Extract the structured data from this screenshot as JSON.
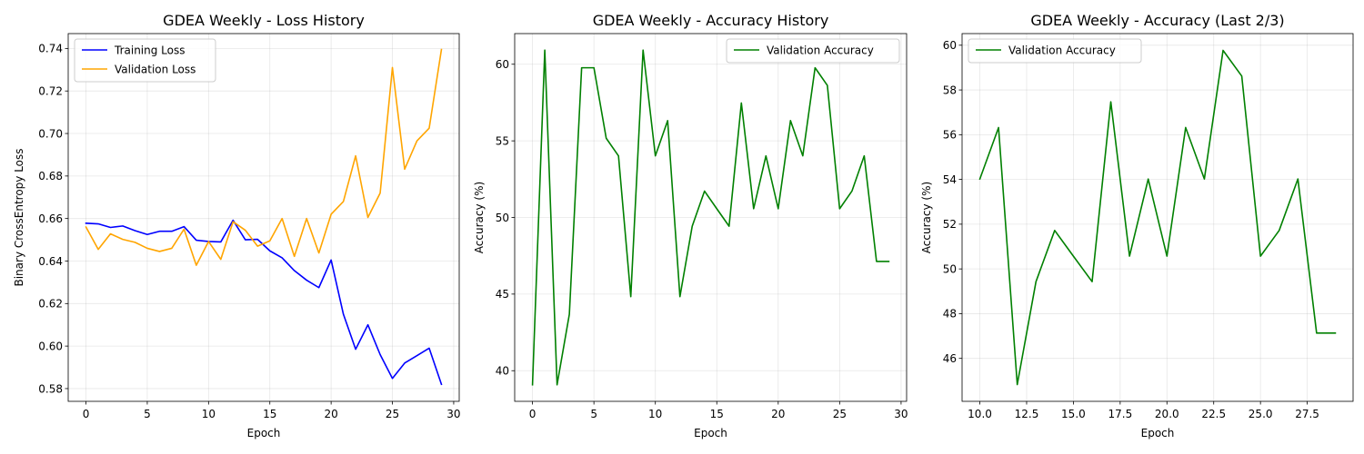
{
  "chart_data": [
    {
      "type": "line",
      "title": "GDEA Weekly - Loss History",
      "xlabel": "Epoch",
      "ylabel": "Binary CrossEntropy Loss",
      "xlim": [
        -1.45,
        30.45
      ],
      "ylim": [
        0.574,
        0.747
      ],
      "xticks": [
        0,
        5,
        10,
        15,
        20,
        25,
        30
      ],
      "xtick_labels": [
        "0",
        "5",
        "10",
        "15",
        "20",
        "25",
        "30"
      ],
      "yticks": [
        0.58,
        0.6,
        0.62,
        0.64,
        0.66,
        0.68,
        0.7,
        0.72,
        0.74
      ],
      "ytick_labels": [
        "0.58",
        "0.60",
        "0.62",
        "0.64",
        "0.66",
        "0.68",
        "0.70",
        "0.72",
        "0.74"
      ],
      "grid": true,
      "legend": "top-left",
      "x": [
        0,
        1,
        2,
        3,
        4,
        5,
        6,
        7,
        8,
        9,
        10,
        11,
        12,
        13,
        14,
        15,
        16,
        17,
        18,
        19,
        20,
        21,
        22,
        23,
        24,
        25,
        26,
        27,
        28,
        29
      ],
      "series": [
        {
          "name": "Training Loss",
          "color": "#0000ff",
          "values": [
            0.6578,
            0.6575,
            0.6558,
            0.6565,
            0.6543,
            0.6525,
            0.654,
            0.654,
            0.6562,
            0.6498,
            0.6492,
            0.649,
            0.6592,
            0.65,
            0.6502,
            0.6448,
            0.6415,
            0.6355,
            0.631,
            0.6275,
            0.6405,
            0.615,
            0.5985,
            0.61,
            0.596,
            0.5848,
            0.592,
            0.5955,
            0.599,
            0.582
          ]
        },
        {
          "name": "Validation Loss",
          "color": "#ffa500",
          "values": [
            0.656,
            0.6455,
            0.6528,
            0.6502,
            0.6488,
            0.646,
            0.6445,
            0.646,
            0.655,
            0.638,
            0.6492,
            0.6408,
            0.6585,
            0.6545,
            0.647,
            0.6495,
            0.66,
            0.6422,
            0.66,
            0.6438,
            0.662,
            0.668,
            0.6895,
            0.6605,
            0.672,
            0.731,
            0.6832,
            0.6965,
            0.7025,
            0.7395
          ]
        }
      ]
    },
    {
      "type": "line",
      "title": "GDEA Weekly - Accuracy History",
      "xlabel": "Epoch",
      "ylabel": "Accuracy (%)",
      "xlim": [
        -1.45,
        30.45
      ],
      "ylim": [
        38.0,
        62.0
      ],
      "xticks": [
        0,
        5,
        10,
        15,
        20,
        25,
        30
      ],
      "xtick_labels": [
        "0",
        "5",
        "10",
        "15",
        "20",
        "25",
        "30"
      ],
      "yticks": [
        40,
        45,
        50,
        55,
        60
      ],
      "ytick_labels": [
        "40",
        "45",
        "50",
        "55",
        "60"
      ],
      "grid": true,
      "legend": "top-right",
      "x": [
        0,
        1,
        2,
        3,
        4,
        5,
        6,
        7,
        8,
        9,
        10,
        11,
        12,
        13,
        14,
        15,
        16,
        17,
        18,
        19,
        20,
        21,
        22,
        23,
        24,
        25,
        26,
        27,
        28,
        29
      ],
      "series": [
        {
          "name": "Validation Accuracy",
          "color": "#008000",
          "values": [
            39.08,
            60.92,
            39.08,
            43.68,
            59.77,
            59.77,
            55.17,
            54.02,
            44.83,
            60.92,
            54.02,
            56.32,
            44.83,
            49.43,
            51.72,
            50.57,
            49.43,
            57.47,
            50.57,
            54.02,
            50.57,
            56.32,
            54.02,
            59.77,
            58.62,
            50.57,
            51.72,
            54.02,
            47.13,
            47.13
          ]
        }
      ]
    },
    {
      "type": "line",
      "title": "GDEA Weekly - Accuracy (Last 2/3)",
      "xlabel": "Epoch",
      "ylabel": "Accuracy (%)",
      "xlim": [
        9.05,
        29.95
      ],
      "ylim": [
        44.08,
        60.52
      ],
      "xticks": [
        10.0,
        12.5,
        15.0,
        17.5,
        20.0,
        22.5,
        25.0,
        27.5
      ],
      "xtick_labels": [
        "10.0",
        "12.5",
        "15.0",
        "17.5",
        "20.0",
        "22.5",
        "25.0",
        "27.5"
      ],
      "yticks": [
        46,
        48,
        50,
        52,
        54,
        56,
        58,
        60
      ],
      "ytick_labels": [
        "46",
        "48",
        "50",
        "52",
        "54",
        "56",
        "58",
        "60"
      ],
      "grid": true,
      "legend": "top-left",
      "x": [
        10,
        11,
        12,
        13,
        14,
        15,
        16,
        17,
        18,
        19,
        20,
        21,
        22,
        23,
        24,
        25,
        26,
        27,
        28,
        29
      ],
      "series": [
        {
          "name": "Validation Accuracy",
          "color": "#008000",
          "values": [
            54.02,
            56.32,
            44.83,
            49.43,
            51.72,
            50.57,
            49.43,
            57.47,
            50.57,
            54.02,
            50.57,
            56.32,
            54.02,
            59.77,
            58.62,
            50.57,
            51.72,
            54.02,
            47.13,
            47.13
          ]
        }
      ]
    }
  ]
}
